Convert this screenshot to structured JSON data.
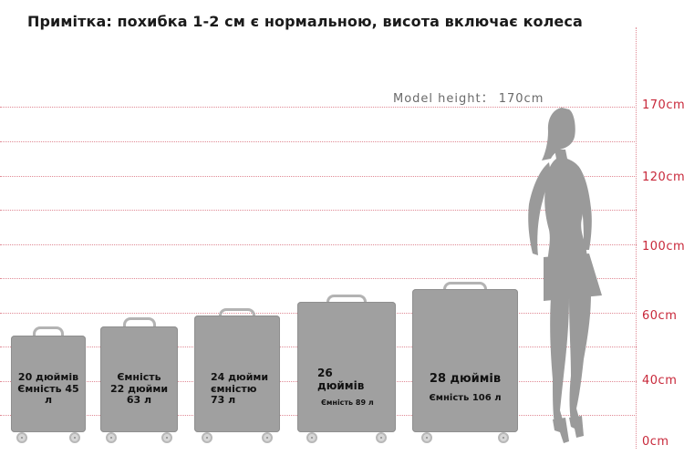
{
  "note": "Примітка: похибка 1-2 см є нормальною, висота включає колеса",
  "model_height": "Model height： 170cm",
  "scale_ticks": [
    "170cm",
    "120cm",
    "100cm",
    "60cm",
    "40cm",
    "0cm"
  ],
  "suitcases": [
    {
      "lines": [
        "20 дюймів",
        "Ємність 45",
        "л"
      ]
    },
    {
      "lines": [
        "Ємність",
        "22 дюйми",
        "63 л"
      ]
    },
    {
      "lines": [
        "24 дюйми",
        "ємністю",
        "73 л"
      ]
    },
    {
      "lines": [
        "26",
        "дюймів"
      ],
      "small": "Ємність 89 л"
    },
    {
      "lines": [
        "28 дюймів"
      ],
      "small": "Ємність 106 л"
    }
  ],
  "colors": {
    "accent": "#c8283a",
    "gridline": "#e08a95",
    "suitcase": "#a0a0a0",
    "silhouette": "#9a9a9a"
  }
}
